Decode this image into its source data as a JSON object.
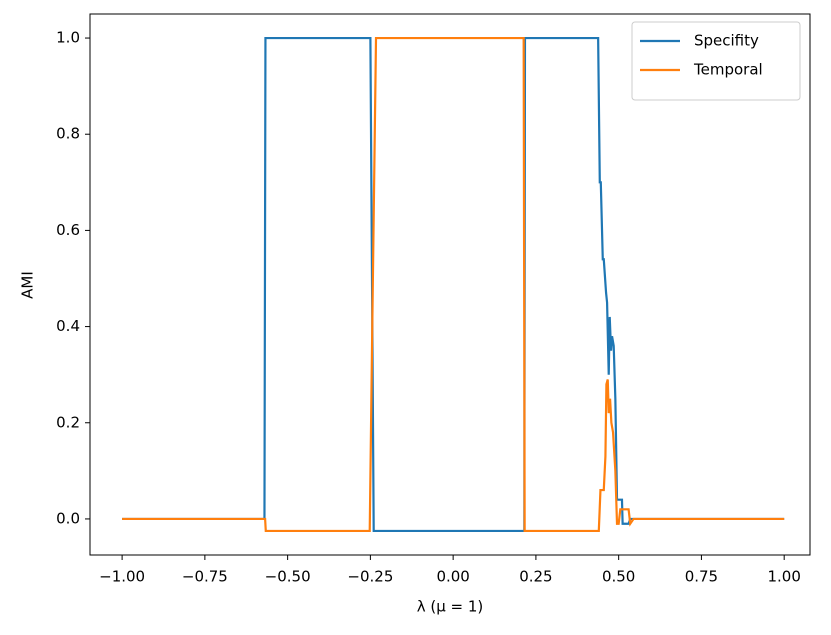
{
  "chart_data": {
    "type": "line",
    "xlabel": "λ (μ = 1)",
    "ylabel": "AMI",
    "xlim": [
      -1.097,
      1.078
    ],
    "ylim": [
      -0.075,
      1.05
    ],
    "xticks": [
      {
        "value": -1,
        "label": "−1.00"
      },
      {
        "value": -0.75,
        "label": "−0.75"
      },
      {
        "value": -0.5,
        "label": "−0.50"
      },
      {
        "value": -0.25,
        "label": "−0.25"
      },
      {
        "value": 0,
        "label": "0.00"
      },
      {
        "value": 0.25,
        "label": "0.25"
      },
      {
        "value": 0.5,
        "label": "0.50"
      },
      {
        "value": 0.75,
        "label": "0.75"
      },
      {
        "value": 1,
        "label": "1.00"
      }
    ],
    "yticks": [
      {
        "value": 0,
        "label": "0.0"
      },
      {
        "value": 0.2,
        "label": "0.2"
      },
      {
        "value": 0.4,
        "label": "0.4"
      },
      {
        "value": 0.6,
        "label": "0.6"
      },
      {
        "value": 0.8,
        "label": "0.8"
      },
      {
        "value": 1,
        "label": "1.0"
      }
    ],
    "legend": "upper right",
    "series": [
      {
        "name": "Specifity",
        "color": "#1f77b4",
        "x": [
          -1,
          -0.57,
          -0.567,
          -0.25,
          -0.24,
          0.215,
          0.217,
          0.438,
          0.443,
          0.446,
          0.452,
          0.455,
          0.462,
          0.465,
          0.47,
          0.473,
          0.477,
          0.48,
          0.485,
          0.49,
          0.495,
          0.5,
          0.51,
          0.512,
          0.53,
          0.535,
          1
        ],
        "values": [
          0,
          0,
          1.0,
          1.0,
          -0.025,
          -0.025,
          1.0,
          1.0,
          0.7,
          0.7,
          0.54,
          0.54,
          0.47,
          0.45,
          0.3,
          0.42,
          0.35,
          0.38,
          0.36,
          0.25,
          0.04,
          0.04,
          0.04,
          -0.01,
          -0.01,
          0,
          0
        ]
      },
      {
        "name": "Temporal",
        "color": "#ff7f0e",
        "x": [
          -1,
          -0.568,
          -0.566,
          -0.252,
          -0.243,
          -0.233,
          0.213,
          0.216,
          0.44,
          0.445,
          0.455,
          0.46,
          0.463,
          0.467,
          0.47,
          0.474,
          0.478,
          0.483,
          0.49,
          0.495,
          0.5,
          0.505,
          0.53,
          0.535,
          0.545,
          1
        ],
        "values": [
          0,
          0,
          -0.025,
          -0.025,
          0.47,
          1.0,
          1.0,
          -0.025,
          -0.025,
          0.06,
          0.06,
          0.13,
          0.28,
          0.29,
          0.22,
          0.25,
          0.2,
          0.18,
          0.1,
          -0.01,
          -0.01,
          0.02,
          0.02,
          -0.01,
          0,
          0
        ]
      }
    ]
  }
}
